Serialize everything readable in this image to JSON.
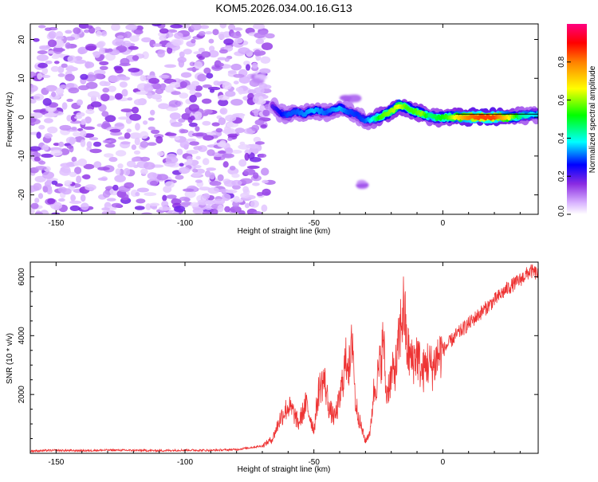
{
  "title": "KOM5.2026.034.00.16.G13",
  "chart_data": [
    {
      "type": "heatmap",
      "title": "",
      "xlabel": "Height of straight line (km)",
      "ylabel": "Frequency (Hz)",
      "xlim": [
        -160,
        37
      ],
      "ylim": [
        -25,
        24
      ],
      "xticks": [
        -150,
        -100,
        -50,
        0
      ],
      "yticks": [
        -20,
        -10,
        0,
        10,
        20
      ],
      "colorbar": {
        "label": "Normalized spectral amplitude",
        "range": [
          0,
          1
        ],
        "ticks": [
          0.0,
          0.2,
          0.4,
          0.6,
          0.8
        ]
      },
      "noise_region_x": [
        -160,
        -67
      ],
      "signal_track": {
        "x": [
          -66,
          -63,
          -60,
          -57,
          -54,
          -50,
          -45,
          -40,
          -37,
          -33,
          -30,
          -27,
          -24,
          -20,
          -17,
          -14,
          -11,
          -8,
          -5,
          -2,
          2,
          6,
          10,
          15,
          20,
          25,
          30,
          37
        ],
        "frequency": [
          3,
          1,
          0.5,
          1.5,
          0.8,
          1.8,
          1.2,
          2.5,
          1.5,
          0.5,
          -1,
          -0.5,
          0.2,
          1.5,
          3,
          2.5,
          1.5,
          0.8,
          0.2,
          -0.2,
          0,
          0,
          0,
          0,
          0,
          0,
          0.3,
          0.8
        ],
        "amplitude": [
          0.2,
          0.25,
          0.3,
          0.3,
          0.32,
          0.35,
          0.3,
          0.35,
          0.3,
          0.28,
          0.3,
          0.4,
          0.55,
          0.6,
          0.65,
          0.55,
          0.55,
          0.6,
          0.45,
          0.5,
          0.55,
          0.7,
          0.8,
          0.85,
          0.85,
          0.7,
          0.45,
          0.35
        ]
      },
      "features": [
        {
          "x": -72,
          "frequency": 10,
          "amplitude": 0.05
        },
        {
          "x": -36,
          "frequency": 4.5,
          "amplitude": 0.08
        },
        {
          "x": -31,
          "frequency": -17.5,
          "amplitude": 0.08
        }
      ]
    },
    {
      "type": "line",
      "title": "",
      "xlabel": "Height of straight line (km)",
      "ylabel": "SNR (10 * v/v)",
      "xlim": [
        -160,
        37
      ],
      "ylim": [
        0,
        6500
      ],
      "xticks": [
        -150,
        -100,
        -50,
        0
      ],
      "yticks": [
        2000,
        4000,
        6000
      ],
      "color": "#ee3333",
      "series": [
        {
          "name": "SNR",
          "x": [
            -160,
            -150,
            -140,
            -130,
            -120,
            -110,
            -100,
            -90,
            -80,
            -70,
            -66,
            -63,
            -60,
            -58,
            -56,
            -53,
            -50,
            -48,
            -46,
            -44,
            -42,
            -40,
            -38,
            -37,
            -36,
            -35,
            -34,
            -32,
            -30,
            -28,
            -27,
            -25,
            -24,
            -23,
            -22,
            -20,
            -18,
            -16,
            -15,
            -14,
            -12,
            -10,
            -8,
            -6,
            -4,
            -2,
            0,
            5,
            10,
            15,
            20,
            25,
            30,
            34,
            37
          ],
          "y": [
            80,
            100,
            90,
            110,
            100,
            90,
            110,
            100,
            130,
            250,
            500,
            1200,
            1600,
            1400,
            1000,
            1700,
            800,
            2200,
            2500,
            1500,
            1200,
            1800,
            3000,
            3300,
            2800,
            4100,
            1800,
            1000,
            400,
            800,
            2000,
            2700,
            3200,
            3900,
            2000,
            2600,
            3000,
            4600,
            5000,
            3600,
            3100,
            3400,
            2700,
            3100,
            2900,
            3300,
            3500,
            4000,
            4400,
            4800,
            5200,
            5600,
            5900,
            6200,
            6100
          ]
        }
      ]
    }
  ]
}
